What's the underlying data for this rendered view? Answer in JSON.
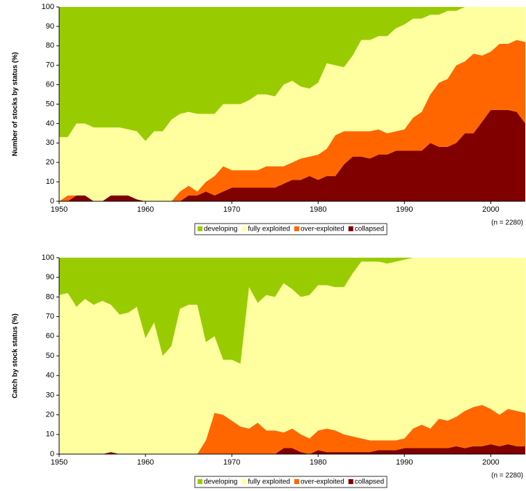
{
  "chart_data": [
    {
      "type": "stacked-area",
      "y_label": "Number of stocks by status (%)",
      "annotation": "(n = 2280)",
      "x": [
        1950,
        1951,
        1952,
        1953,
        1954,
        1955,
        1956,
        1957,
        1958,
        1959,
        1960,
        1961,
        1962,
        1963,
        1964,
        1965,
        1966,
        1967,
        1968,
        1969,
        1970,
        1971,
        1972,
        1973,
        1974,
        1975,
        1976,
        1977,
        1978,
        1979,
        1980,
        1981,
        1982,
        1983,
        1984,
        1985,
        1986,
        1987,
        1988,
        1989,
        1990,
        1991,
        1992,
        1993,
        1994,
        1995,
        1996,
        1997,
        1998,
        1999,
        2000,
        2001,
        2002,
        2003,
        2004
      ],
      "xlim": [
        1950,
        2004
      ],
      "xticks": [
        1950,
        1960,
        1970,
        1980,
        1990,
        2000
      ],
      "ylim": [
        0,
        100
      ],
      "yticks": [
        0,
        10,
        20,
        30,
        40,
        50,
        60,
        70,
        80,
        90,
        100
      ],
      "series": [
        {
          "name": "collapsed",
          "color": "#800000",
          "values": [
            0,
            0,
            3,
            3,
            0,
            0,
            3,
            3,
            3,
            1,
            0,
            0,
            0,
            0,
            0,
            3,
            3,
            5,
            3,
            5,
            7,
            7,
            7,
            7,
            7,
            7,
            9,
            11,
            11,
            13,
            11,
            13,
            13,
            19,
            23,
            23,
            22,
            24,
            24,
            26,
            26,
            26,
            26,
            30,
            28,
            28,
            30,
            35,
            35,
            41,
            47,
            47,
            47,
            46,
            40
          ]
        },
        {
          "name": "over-exploited",
          "color": "#ff6600",
          "values": [
            0,
            3,
            0,
            0,
            0,
            0,
            0,
            0,
            0,
            0,
            0,
            0,
            0,
            0,
            5,
            5,
            2,
            5,
            10,
            13,
            9,
            9,
            9,
            9,
            11,
            11,
            9,
            9,
            11,
            10,
            13,
            14,
            21,
            17,
            13,
            13,
            14,
            13,
            11,
            10,
            11,
            17,
            20,
            25,
            33,
            35,
            40,
            37,
            41,
            34,
            30,
            34,
            34,
            37,
            42
          ]
        },
        {
          "name": "fully exploited",
          "color": "#ffffa0",
          "values": [
            33,
            30,
            37,
            37,
            38,
            38,
            35,
            35,
            34,
            35,
            31,
            36,
            36,
            42,
            40,
            38,
            40,
            35,
            32,
            32,
            34,
            34,
            36,
            39,
            37,
            36,
            42,
            42,
            37,
            35,
            37,
            44,
            36,
            33,
            39,
            47,
            47,
            48,
            50,
            53,
            54,
            51,
            48,
            41,
            35,
            35,
            28,
            28,
            24,
            25,
            23,
            19,
            19,
            17,
            18
          ]
        },
        {
          "name": "developing",
          "color": "#99cc00",
          "values": [
            67,
            67,
            60,
            60,
            62,
            62,
            62,
            62,
            63,
            64,
            69,
            64,
            64,
            58,
            55,
            54,
            55,
            55,
            55,
            50,
            50,
            50,
            48,
            45,
            45,
            46,
            40,
            38,
            41,
            42,
            39,
            29,
            30,
            31,
            25,
            17,
            17,
            15,
            15,
            11,
            9,
            6,
            6,
            4,
            4,
            2,
            2,
            0,
            0,
            0,
            0,
            0,
            0,
            0,
            0
          ]
        }
      ]
    },
    {
      "type": "stacked-area",
      "y_label": "Catch by stock status (%)",
      "annotation": "(n = 2280)",
      "x": [
        1950,
        1951,
        1952,
        1953,
        1954,
        1955,
        1956,
        1957,
        1958,
        1959,
        1960,
        1961,
        1962,
        1963,
        1964,
        1965,
        1966,
        1967,
        1968,
        1969,
        1970,
        1971,
        1972,
        1973,
        1974,
        1975,
        1976,
        1977,
        1978,
        1979,
        1980,
        1981,
        1982,
        1983,
        1984,
        1985,
        1986,
        1987,
        1988,
        1989,
        1990,
        1991,
        1992,
        1993,
        1994,
        1995,
        1996,
        1997,
        1998,
        1999,
        2000,
        2001,
        2002,
        2003,
        2004
      ],
      "xlim": [
        1950,
        2004
      ],
      "xticks": [
        1950,
        1960,
        1970,
        1980,
        1990,
        2000
      ],
      "ylim": [
        0,
        100
      ],
      "yticks": [
        0,
        10,
        20,
        30,
        40,
        50,
        60,
        70,
        80,
        90,
        100
      ],
      "series": [
        {
          "name": "collapsed",
          "color": "#800000",
          "values": [
            0,
            0,
            0,
            0,
            0,
            0,
            1,
            0,
            0,
            0,
            0,
            0,
            0,
            0,
            0,
            0,
            0,
            0,
            0,
            0,
            0,
            0,
            0,
            0,
            0,
            0,
            3,
            3,
            1,
            0,
            2,
            1,
            1,
            1,
            1,
            1,
            1,
            2,
            2,
            2,
            3,
            3,
            3,
            3,
            3,
            3,
            4,
            3,
            4,
            4,
            5,
            4,
            5,
            4,
            4
          ]
        },
        {
          "name": "over-exploited",
          "color": "#ff6600",
          "values": [
            0,
            0,
            0,
            0,
            0,
            0,
            0,
            0,
            0,
            0,
            0,
            0,
            0,
            0,
            0,
            0,
            0,
            7,
            21,
            20,
            17,
            14,
            13,
            16,
            12,
            12,
            8,
            10,
            9,
            8,
            10,
            12,
            11,
            9,
            8,
            7,
            6,
            5,
            5,
            5,
            5,
            10,
            12,
            10,
            15,
            14,
            15,
            19,
            20,
            21,
            18,
            16,
            18,
            18,
            17
          ]
        },
        {
          "name": "fully exploited",
          "color": "#ffffa0",
          "values": [
            81,
            82,
            75,
            79,
            76,
            78,
            75,
            71,
            72,
            75,
            59,
            67,
            50,
            55,
            74,
            76,
            76,
            50,
            39,
            28,
            31,
            32,
            72,
            61,
            69,
            68,
            76,
            71,
            70,
            73,
            74,
            73,
            73,
            75,
            83,
            90,
            91,
            91,
            90,
            91,
            91,
            87,
            85,
            87,
            82,
            83,
            81,
            78,
            76,
            75,
            77,
            80,
            77,
            78,
            79
          ]
        },
        {
          "name": "developing",
          "color": "#99cc00",
          "values": [
            19,
            18,
            25,
            21,
            24,
            22,
            24,
            29,
            28,
            25,
            41,
            33,
            50,
            45,
            26,
            24,
            24,
            43,
            40,
            52,
            52,
            54,
            15,
            23,
            19,
            20,
            13,
            16,
            20,
            19,
            14,
            14,
            15,
            15,
            8,
            2,
            2,
            2,
            3,
            2,
            1,
            0,
            0,
            0,
            0,
            0,
            0,
            0,
            0,
            0,
            0,
            0,
            0,
            0,
            0
          ]
        }
      ]
    }
  ]
}
